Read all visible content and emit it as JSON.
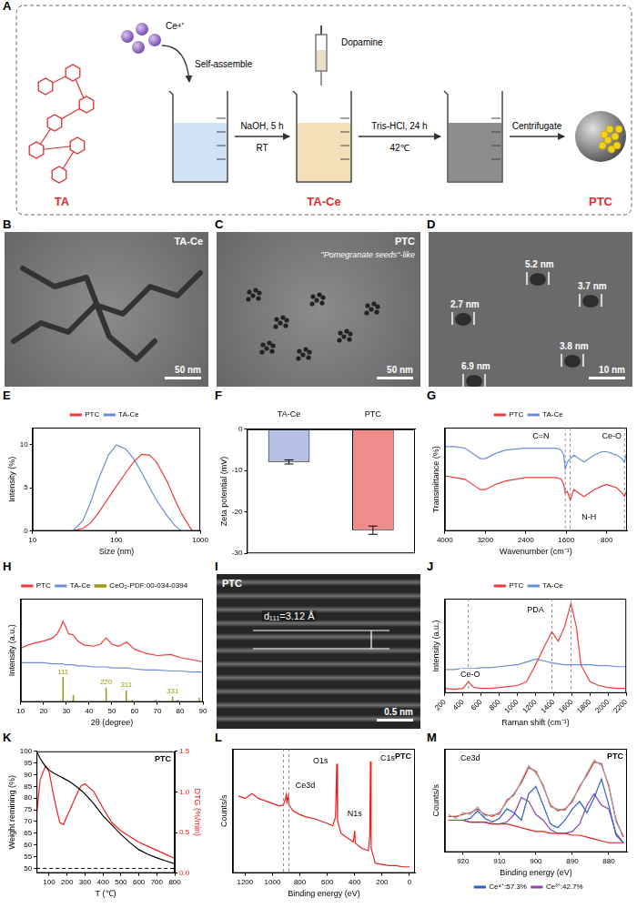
{
  "schematic": {
    "panel": "A",
    "molecule": "TA",
    "ion": "Ce⁴⁺",
    "step1": "Self-assemble",
    "step2": "NaOH, 5 h",
    "step2_condition": "RT",
    "reagent": "Dopamine",
    "step3": "Tris-HCl, 24 h",
    "step3_condition": "42℃",
    "step4": "Centrifugate",
    "intermediate": "TA-Ce",
    "product": "PTC"
  },
  "images": [
    {
      "panel": "B",
      "label": "TA-Ce",
      "scale_bar": "50 nm"
    },
    {
      "panel": "C",
      "label": "PTC",
      "caption": "\"Pomegranate seeds\"-like",
      "scale_bar": "50 nm"
    },
    {
      "panel": "D",
      "sizes": [
        "5.2 nm",
        "3.7 nm",
        "2.7 nm",
        "3.8 nm",
        "6.9 nm"
      ],
      "scale_bar": "10 nm"
    },
    {
      "panel": "I",
      "label": "PTC",
      "spacing": "d₁₁₁=3.12 Å",
      "scale_bar": "0.5 nm"
    }
  ],
  "chart_data": [
    {
      "panel": "E",
      "type": "line",
      "x_label": "Size (nm)",
      "y_label": "Intensity (%)",
      "x": [
        30,
        40,
        50,
        60,
        80,
        100,
        130,
        160,
        200,
        250,
        300,
        400,
        500,
        600,
        800
      ],
      "series": [
        {
          "name": "PTC",
          "color": "#ee3b3b",
          "values": [
            0,
            0.3,
            1,
            2,
            3.8,
            5.2,
            6.8,
            8,
            8.9,
            8.8,
            8,
            5.8,
            3.6,
            2,
            0
          ]
        },
        {
          "name": "TA-Ce",
          "color": "#6b8ed6",
          "values": [
            0,
            1.2,
            3.5,
            5.8,
            8.8,
            10,
            9.5,
            8.4,
            6.8,
            5,
            3.6,
            1.8,
            0.6,
            0,
            0
          ]
        }
      ],
      "log": "x",
      "xlim": [
        10,
        1000
      ],
      "xticks": [
        10,
        100,
        1000
      ],
      "ylim": [
        0,
        12
      ],
      "yticks": [
        0,
        5,
        10
      ],
      "legend": "top",
      "grid": false
    },
    {
      "panel": "F",
      "type": "bar",
      "y_label": "Zeta potential (mV)",
      "categories": [
        "TA-Ce",
        "PTC"
      ],
      "values": [
        -7.9,
        -24.4
      ],
      "errors": [
        0.5,
        1.0
      ],
      "colors": [
        "#b4c0e4",
        "#f08c8c"
      ],
      "ylim": [
        -30,
        0
      ],
      "yticks": [
        -30,
        -20,
        -10,
        0
      ],
      "grid": false
    },
    {
      "panel": "G",
      "type": "line",
      "x_label": "Wavenumber (cm⁻¹)",
      "y_label": "Transmittance (%)",
      "x": [
        4000,
        3800,
        3600,
        3400,
        3300,
        3200,
        3000,
        2800,
        2400,
        2000,
        1800,
        1700,
        1650,
        1620,
        1580,
        1520,
        1450,
        1350,
        1250,
        1150,
        1050,
        900,
        800,
        700,
        600,
        500,
        450,
        400
      ],
      "series": [
        {
          "name": "PTC",
          "color": "#ee3b3b",
          "values": [
            72,
            71,
            70,
            66,
            64,
            64,
            67,
            69,
            71,
            71,
            71,
            70,
            67,
            62,
            63,
            58,
            64,
            62,
            60,
            62,
            64,
            66,
            67,
            66,
            65,
            62,
            60,
            64
          ]
        },
        {
          "name": "TA-Ce",
          "color": "#6b8ed6",
          "values": [
            89,
            89,
            88,
            84,
            82,
            82,
            85,
            87,
            88,
            88,
            88,
            87,
            84,
            76,
            80,
            82,
            84,
            82,
            80,
            82,
            84,
            86,
            86,
            85,
            84,
            82,
            80,
            86
          ]
        }
      ],
      "xlim": [
        4000,
        400
      ],
      "xticks": [
        4000,
        3200,
        2400,
        1600,
        800
      ],
      "ylim": [
        40,
        100
      ],
      "tick_labels": "x",
      "legend": "top",
      "grid": false,
      "annotations": [
        {
          "text": "C=N",
          "x": 2100,
          "y": 95,
          "targets": [
            1620
          ]
        },
        {
          "text": "N-H",
          "x": 1150,
          "y": 48,
          "targets": [
            1520
          ]
        },
        {
          "text": "Ce-O",
          "x": 700,
          "y": 95,
          "targets": [
            450
          ]
        }
      ]
    },
    {
      "panel": "H",
      "type": "line",
      "x_label": "2θ (degree)",
      "y_label": "Intensity (a.u.)",
      "x": [
        10,
        13,
        16,
        20,
        24,
        26,
        27.5,
        28.5,
        29.5,
        31,
        33,
        35,
        38,
        42,
        45,
        47.5,
        50,
        53,
        56.5,
        60,
        65,
        70,
        76,
        80,
        85,
        90
      ],
      "series": [
        {
          "name": "PTC",
          "color": "#ee3b3b",
          "values": [
            52,
            55,
            57,
            59,
            62,
            66,
            72,
            78,
            74,
            66,
            65,
            59,
            55,
            54,
            56,
            62,
            56,
            54,
            58,
            51,
            47,
            45,
            46,
            43,
            41,
            39
          ]
        },
        {
          "name": "TA-Ce",
          "color": "#6b8ed6",
          "values": [
            38,
            38,
            38,
            38,
            37,
            37,
            37,
            37,
            36,
            36,
            36,
            35,
            35,
            34,
            34,
            34,
            33,
            33,
            33,
            32,
            31,
            31,
            30,
            30,
            29,
            29
          ]
        }
      ],
      "reference": {
        "name": "CeO₂-PDF:00-034-0394",
        "color": "#9a9a10",
        "x": [
          28.55,
          33.08,
          47.48,
          56.34,
          59.09,
          69.4,
          76.7,
          79.07,
          88.41
        ],
        "values": [
          24,
          7,
          14,
          11,
          2,
          2,
          5,
          2,
          4
        ],
        "labels": [
          "111",
          null,
          "220",
          "311",
          null,
          null,
          "331",
          null,
          null
        ]
      },
      "xlim": [
        10,
        90
      ],
      "xticks": [
        10,
        20,
        30,
        40,
        50,
        60,
        70,
        80,
        90
      ],
      "ylim": [
        0,
        100
      ],
      "tick_labels": "x",
      "legend": "top",
      "grid": false
    },
    {
      "panel": "J",
      "type": "line",
      "x_label": "Raman shift (cm⁻¹)",
      "y_label": "Intensity (a.u.)",
      "x": [
        200,
        300,
        400,
        460,
        520,
        600,
        700,
        800,
        900,
        1000,
        1100,
        1200,
        1300,
        1380,
        1450,
        1520,
        1590,
        1650,
        1700,
        1800,
        1900,
        2000,
        2100,
        2200
      ],
      "series": [
        {
          "name": "PTC",
          "color": "#ee3b3b",
          "values": [
            0.05,
            0.04,
            0.05,
            0.12,
            0.06,
            0.05,
            0.05,
            0.06,
            0.07,
            0.08,
            0.12,
            0.3,
            0.5,
            0.65,
            0.55,
            0.7,
            0.95,
            0.7,
            0.3,
            0.12,
            0.08,
            0.06,
            0.05,
            0.05
          ]
        },
        {
          "name": "TA-Ce",
          "color": "#6b8ed6",
          "values": [
            0.25,
            0.25,
            0.26,
            0.26,
            0.26,
            0.27,
            0.27,
            0.28,
            0.29,
            0.3,
            0.33,
            0.36,
            0.34,
            0.32,
            0.31,
            0.3,
            0.3,
            0.3,
            0.3,
            0.3,
            0.29,
            0.29,
            0.28,
            0.28
          ]
        }
      ],
      "xlim": [
        200,
        2200
      ],
      "xticks": [
        200,
        400,
        600,
        800,
        1000,
        1200,
        1400,
        1600,
        1800,
        2000,
        2200
      ],
      "ylim": [
        0,
        1
      ],
      "tick_labels": "x",
      "legend": "top",
      "grid": false,
      "annotations": [
        {
          "text": "Ce-O",
          "x": 480,
          "y": 0.2,
          "targets": [
            460
          ]
        },
        {
          "text": "PDA",
          "x": 1200,
          "y": 0.88,
          "targets": [
            1380,
            1590
          ]
        }
      ]
    },
    {
      "panel": "K",
      "type": "line",
      "title": "PTC",
      "x_label": "T (℃)",
      "y_label": "Weight remining (%)",
      "y2_label": "DTG (%/min)",
      "x": [
        30,
        50,
        80,
        100,
        130,
        160,
        180,
        220,
        260,
        280,
        300,
        350,
        400,
        450,
        500,
        550,
        600,
        650,
        700,
        750,
        800
      ],
      "series": [
        {
          "color": "#000000",
          "values": [
            100,
            97,
            93.5,
            92,
            90.5,
            89.3,
            88.5,
            86.8,
            84.5,
            83.2,
            81.8,
            77.5,
            72.5,
            68.5,
            64.5,
            61,
            58,
            56,
            54.5,
            53.2,
            52
          ]
        },
        {
          "color": "#ee2020",
          "axis": "y2",
          "values": [
            0.7,
            1.15,
            1.32,
            1.25,
            0.9,
            0.62,
            0.6,
            0.8,
            1.0,
            1.08,
            1.1,
            1.0,
            0.8,
            0.62,
            0.52,
            0.45,
            0.38,
            0.33,
            0.28,
            0.23,
            0.18
          ]
        }
      ],
      "hline": 50,
      "xlim": [
        30,
        800
      ],
      "xticks": [
        100,
        200,
        300,
        400,
        500,
        600,
        700,
        800
      ],
      "ylim": [
        48,
        100
      ],
      "yticks": [
        50,
        55,
        60,
        65,
        70,
        75,
        80,
        85,
        90,
        95,
        100
      ],
      "y2lim": [
        0,
        1.5
      ],
      "y2ticks": [
        {
          "value": 0,
          "label": "0.0"
        },
        0.5,
        {
          "value": 1,
          "label": "1.0"
        },
        1.5
      ],
      "grid": false
    },
    {
      "panel": "L",
      "type": "line",
      "title": "PTC",
      "x_label": "Binding energy (eV)",
      "y_label": "Counts/s",
      "x": [
        1250,
        1200,
        1150,
        1100,
        1050,
        1000,
        950,
        920,
        905,
        900,
        895,
        885,
        880,
        850,
        800,
        750,
        700,
        650,
        600,
        560,
        540,
        531,
        525,
        500,
        450,
        410,
        400,
        395,
        350,
        300,
        290,
        285,
        280,
        250,
        200,
        150,
        100,
        50,
        0
      ],
      "series": [
        {
          "color": "#e82020",
          "values": [
            0.62,
            0.6,
            0.64,
            0.6,
            0.58,
            0.56,
            0.54,
            0.55,
            0.6,
            0.63,
            0.57,
            0.62,
            0.55,
            0.5,
            0.47,
            0.45,
            0.44,
            0.42,
            0.4,
            0.38,
            0.45,
            0.88,
            0.42,
            0.32,
            0.28,
            0.25,
            0.34,
            0.24,
            0.2,
            0.18,
            0.3,
            0.9,
            0.2,
            0.08,
            0.07,
            0.06,
            0.06,
            0.05,
            0.05
          ]
        }
      ],
      "xlim": [
        1290,
        -40
      ],
      "xticks": [
        1200,
        1000,
        800,
        600,
        400,
        200,
        0
      ],
      "ylim": [
        0,
        1
      ],
      "tick_labels": "x",
      "grid": false,
      "annotations": [
        {
          "text": "Ce3d",
          "x": 760,
          "y": 0.7,
          "targets": [
            920,
            880
          ]
        },
        {
          "text": "O1s",
          "x": 650,
          "y": 0.9
        },
        {
          "text": "N1s",
          "x": 400,
          "y": 0.48
        },
        {
          "text": "C1s",
          "x": 160,
          "y": 0.92
        }
      ]
    },
    {
      "panel": "M",
      "type": "line",
      "title": "PTC",
      "x_label": "Binding energy (eV)",
      "y_label": "Counts/s",
      "x": [
        924,
        922,
        920,
        918,
        916,
        914,
        912,
        910,
        908,
        906,
        904,
        902,
        900,
        898,
        896,
        894,
        892,
        890,
        888,
        886,
        884,
        882,
        880,
        878,
        876
      ],
      "series": [
        {
          "color": "#a8a8a8",
          "values": [
            0.55,
            0.53,
            0.56,
            0.55,
            0.59,
            0.54,
            0.55,
            0.55,
            0.63,
            0.65,
            0.73,
            0.81,
            0.77,
            0.71,
            0.59,
            0.58,
            0.57,
            0.63,
            0.69,
            0.77,
            0.84,
            0.81,
            0.71,
            0.51,
            0.44
          ]
        },
        {
          "color": "#e02020",
          "values": [
            0.52,
            0.52,
            0.52,
            0.51,
            0.51,
            0.51,
            0.5,
            0.5,
            0.5,
            0.49,
            0.48,
            0.47,
            0.46,
            0.46,
            0.45,
            0.45,
            0.45,
            0.44,
            0.44,
            0.43,
            0.42,
            0.41,
            0.4,
            0.4,
            0.4
          ]
        },
        {
          "name": "Ce⁴⁺:57.3%",
          "color": "#3060c0",
          "values": [
            0.52,
            0.52,
            0.52,
            0.53,
            0.57,
            0.53,
            0.51,
            0.53,
            0.58,
            0.56,
            0.52,
            0.66,
            0.7,
            0.6,
            0.5,
            0.48,
            0.52,
            0.58,
            0.62,
            0.56,
            0.64,
            0.74,
            0.6,
            0.44,
            0.4
          ]
        },
        {
          "name": "Ce³⁺:42.7%",
          "color": "#9040b0",
          "values": [
            0.52,
            0.52,
            0.52,
            0.51,
            0.51,
            0.51,
            0.5,
            0.5,
            0.51,
            0.55,
            0.64,
            0.62,
            0.55,
            0.52,
            0.47,
            0.45,
            0.45,
            0.46,
            0.5,
            0.6,
            0.66,
            0.6,
            0.58,
            0.45,
            0.4
          ]
        },
        {
          "color": "#e02020",
          "values": [
            0.54,
            0.54,
            0.55,
            0.56,
            0.58,
            0.55,
            0.54,
            0.56,
            0.62,
            0.66,
            0.72,
            0.8,
            0.78,
            0.7,
            0.6,
            0.57,
            0.58,
            0.62,
            0.7,
            0.76,
            0.83,
            0.82,
            0.7,
            0.52,
            0.43
          ]
        }
      ],
      "xlim": [
        925,
        875
      ],
      "xticks": [
        920,
        910,
        900,
        890,
        880
      ],
      "ylim": [
        0.35,
        0.9
      ],
      "tick_labels": "x",
      "legend": "bottom",
      "grid": false,
      "annotations": [
        {
          "text": "Ce3d",
          "x": 918,
          "y": 0.85
        }
      ]
    }
  ]
}
